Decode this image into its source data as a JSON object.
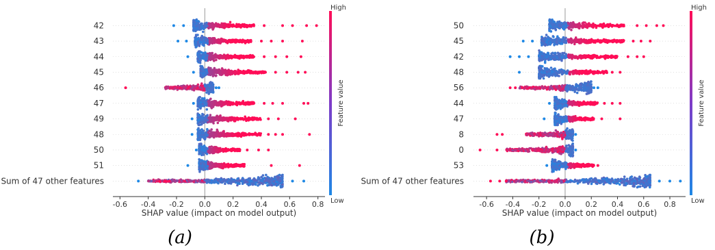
{
  "colors": {
    "low": "#1E88E5",
    "high": "#FF0D57",
    "zero_line": "#999999",
    "row_line": "#cccccc"
  },
  "chart_data": [
    {
      "type": "scatter",
      "caption": "(a)",
      "xlabel": "SHAP value (impact on model output)",
      "xlim": [
        -0.65,
        0.85
      ],
      "xticks": [
        -0.6,
        -0.4,
        -0.2,
        0.0,
        0.2,
        0.4,
        0.6,
        0.8
      ],
      "colorbar": {
        "label": "Feature value",
        "high": "High",
        "low": "Low"
      },
      "features": [
        {
          "name": "42",
          "range": [
            -0.22,
            0.79
          ],
          "body": [
            -0.08,
            0.35
          ],
          "highs": [
            0.42,
            0.55,
            0.62,
            0.72,
            0.79
          ],
          "lows": [
            -0.22,
            -0.15
          ]
        },
        {
          "name": "43",
          "range": [
            -0.19,
            0.69
          ],
          "body": [
            -0.07,
            0.33
          ],
          "highs": [
            0.4,
            0.47,
            0.55,
            0.69
          ],
          "lows": [
            -0.19,
            -0.13
          ]
        },
        {
          "name": "44",
          "range": [
            -0.12,
            0.68
          ],
          "body": [
            -0.05,
            0.35
          ],
          "highs": [
            0.42,
            0.5,
            0.58,
            0.68
          ],
          "lows": [
            -0.12
          ]
        },
        {
          "name": "45",
          "range": [
            -0.08,
            0.71
          ],
          "body": [
            -0.03,
            0.43
          ],
          "highs": [
            0.5,
            0.58,
            0.66,
            0.71
          ],
          "lows": [
            -0.08
          ]
        },
        {
          "name": "46",
          "range": [
            -0.56,
            0.1
          ],
          "body": [
            -0.28,
            0.06
          ],
          "highs": [
            -0.56
          ],
          "lows": [
            0.08,
            0.1
          ]
        },
        {
          "name": "47",
          "range": [
            -0.08,
            0.73
          ],
          "body": [
            -0.05,
            0.35
          ],
          "highs": [
            0.42,
            0.48,
            0.55,
            0.7,
            0.73
          ],
          "lows": [
            -0.08
          ]
        },
        {
          "name": "49",
          "range": [
            -0.09,
            0.64
          ],
          "body": [
            -0.05,
            0.4
          ],
          "highs": [
            0.45,
            0.52,
            0.64
          ],
          "lows": [
            -0.09
          ]
        },
        {
          "name": "48",
          "range": [
            -0.09,
            0.74
          ],
          "body": [
            -0.05,
            0.4
          ],
          "highs": [
            0.45,
            0.5,
            0.55,
            0.74
          ],
          "lows": [
            -0.09
          ]
        },
        {
          "name": "50",
          "range": [
            -0.06,
            0.45
          ],
          "body": [
            -0.04,
            0.25
          ],
          "highs": [
            0.3,
            0.38,
            0.45
          ],
          "lows": [
            -0.06
          ]
        },
        {
          "name": "51",
          "range": [
            -0.12,
            0.67
          ],
          "body": [
            -0.04,
            0.28
          ],
          "highs": [
            0.47,
            0.67
          ],
          "lows": [
            -0.12
          ]
        },
        {
          "name": "Sum of 47 other features",
          "range": [
            -0.47,
            0.7
          ],
          "body": [
            -0.4,
            0.55
          ],
          "highs": [
            -0.32,
            -0.28,
            -0.25
          ],
          "lows": [
            -0.47,
            0.62,
            0.7
          ]
        }
      ]
    },
    {
      "type": "scatter",
      "caption": "(b)",
      "xlabel": "SHAP value (impact on model output)",
      "xlim": [
        -0.7,
        0.92
      ],
      "xticks": [
        -0.6,
        -0.4,
        -0.2,
        0.0,
        0.2,
        0.4,
        0.6,
        0.8
      ],
      "colorbar": {
        "label": "Feature value",
        "high": "High",
        "low": "Low"
      },
      "features": [
        {
          "name": "50",
          "range": [
            -0.12,
            0.75
          ],
          "body": [
            -0.12,
            0.45
          ],
          "highs": [
            0.55,
            0.62,
            0.7,
            0.75
          ],
          "lows": []
        },
        {
          "name": "45",
          "range": [
            -0.32,
            0.65
          ],
          "body": [
            -0.18,
            0.45
          ],
          "highs": [
            0.52,
            0.58,
            0.65
          ],
          "lows": [
            -0.32,
            -0.25
          ]
        },
        {
          "name": "42",
          "range": [
            -0.42,
            0.6
          ],
          "body": [
            -0.2,
            0.4
          ],
          "highs": [
            0.48,
            0.55,
            0.6
          ],
          "lows": [
            -0.42,
            -0.35,
            -0.28
          ]
        },
        {
          "name": "48",
          "range": [
            -0.35,
            0.42
          ],
          "body": [
            -0.2,
            0.32
          ],
          "highs": [
            0.36,
            0.42
          ],
          "lows": [
            -0.35
          ]
        },
        {
          "name": "56",
          "range": [
            -0.42,
            0.25
          ],
          "body": [
            -0.35,
            0.2
          ],
          "highs": [
            -0.42,
            -0.38
          ],
          "lows": [
            0.22,
            0.25
          ]
        },
        {
          "name": "44",
          "range": [
            -0.12,
            0.42
          ],
          "body": [
            -0.08,
            0.25
          ],
          "highs": [
            0.3,
            0.36,
            0.42
          ],
          "lows": [
            -0.12
          ]
        },
        {
          "name": "47",
          "range": [
            -0.16,
            0.42
          ],
          "body": [
            -0.08,
            0.22
          ],
          "highs": [
            0.28,
            0.42
          ],
          "lows": [
            -0.16
          ]
        },
        {
          "name": "8",
          "range": [
            -0.52,
            0.08
          ],
          "body": [
            -0.3,
            0.06
          ],
          "highs": [
            -0.52,
            -0.48
          ],
          "lows": [
            0.08
          ]
        },
        {
          "name": "0",
          "range": [
            -0.65,
            0.08
          ],
          "body": [
            -0.45,
            0.06
          ],
          "highs": [
            -0.65,
            -0.52
          ],
          "lows": [
            0.08
          ]
        },
        {
          "name": "53",
          "range": [
            -0.14,
            0.25
          ],
          "body": [
            -0.1,
            0.22
          ],
          "highs": [
            0.25
          ],
          "lows": [
            -0.14
          ]
        },
        {
          "name": "Sum of 47 other features",
          "range": [
            -0.57,
            0.88
          ],
          "body": [
            -0.45,
            0.65
          ],
          "highs": [
            -0.57,
            -0.5,
            -0.45
          ],
          "lows": [
            0.72,
            0.8,
            0.88
          ]
        }
      ]
    }
  ]
}
